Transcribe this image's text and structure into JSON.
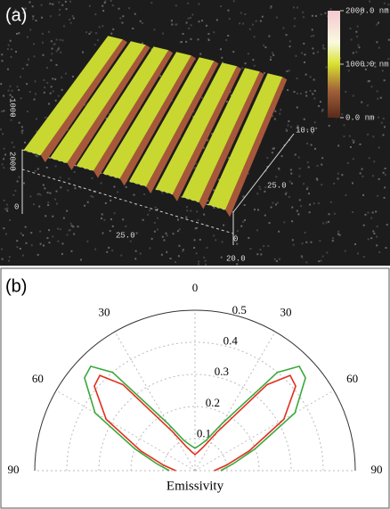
{
  "chart_data": [
    {
      "type": "surface",
      "panel_label": "(a)",
      "clim": [
        0,
        2000
      ],
      "cticks": [
        {
          "value": 0,
          "label": "0.0 nm"
        },
        {
          "value": 1000,
          "label": "1000.0 nm"
        },
        {
          "value": 2000,
          "label": "2000.0 nm"
        }
      ],
      "annotations": [
        "10.0",
        "25.0",
        "20.0",
        "25.0",
        "0",
        "0",
        "1000",
        "2000"
      ]
    },
    {
      "type": "polar",
      "panel_label": "(b)",
      "xlabel": "Emissivity",
      "x": [
        -90,
        -80,
        -70,
        -60,
        -50,
        -45,
        -40,
        -30,
        -20,
        -10,
        0,
        10,
        20,
        30,
        40,
        45,
        50,
        60,
        70,
        80,
        90
      ],
      "xlim": [
        -90,
        90
      ],
      "xticks": [
        {
          "value": -90,
          "label": "90"
        },
        {
          "value": -60,
          "label": "60"
        },
        {
          "value": -30,
          "label": "30"
        },
        0,
        30,
        60,
        90
      ],
      "ylim": [
        0,
        0.5
      ],
      "yticks": [
        0.1,
        0.2,
        0.3,
        0.4,
        0.5
      ],
      "grid": true,
      "series": [
        {
          "color": "#3aa83a",
          "values": [
            0.08,
            0.12,
            0.2,
            0.36,
            0.45,
            0.46,
            0.4,
            0.17,
            0.1,
            0.08,
            0.07,
            0.08,
            0.1,
            0.17,
            0.4,
            0.46,
            0.45,
            0.36,
            0.2,
            0.12,
            0.08
          ]
        },
        {
          "color": "#e0301e",
          "values": [
            0.06,
            0.1,
            0.18,
            0.32,
            0.41,
            0.42,
            0.35,
            0.14,
            0.08,
            0.06,
            0.05,
            0.06,
            0.08,
            0.14,
            0.35,
            0.42,
            0.41,
            0.32,
            0.18,
            0.1,
            0.06
          ]
        }
      ]
    }
  ]
}
